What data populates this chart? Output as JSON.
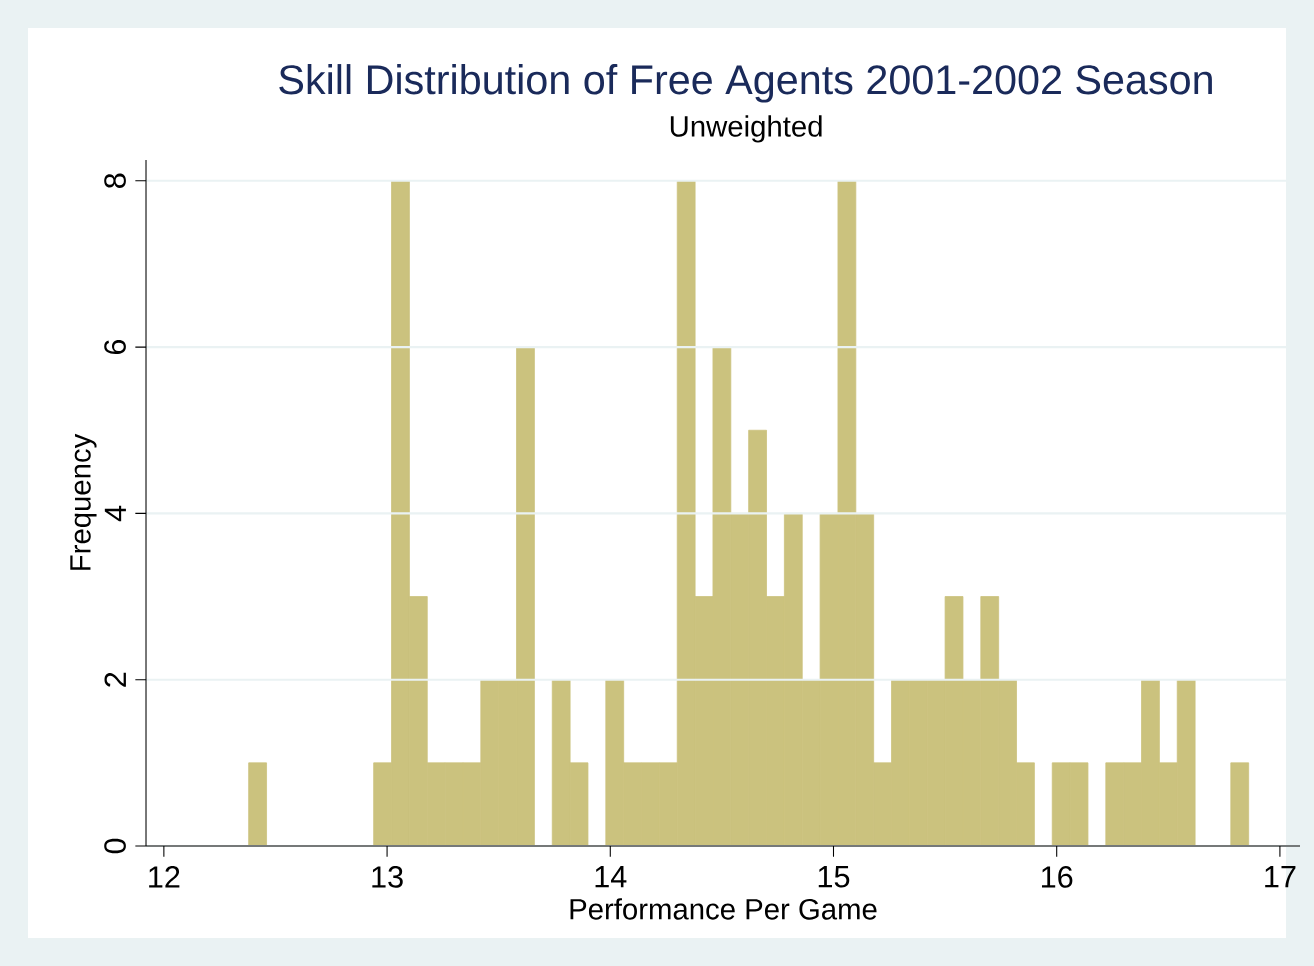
{
  "chart_data": {
    "type": "histogram",
    "title": "Skill Distribution of Free Agents 2001-2002 Season",
    "subtitle": "Unweighted",
    "xlabel": "Performance Per Game",
    "ylabel": "Frequency",
    "bins": [
      12.38,
      12.46,
      12.54,
      12.62,
      12.7,
      12.78,
      12.86,
      12.94,
      13.02,
      13.1,
      13.18,
      13.26,
      13.34,
      13.42,
      13.5,
      13.58,
      13.66,
      13.74,
      13.82,
      13.9,
      13.98,
      14.06,
      14.14,
      14.22,
      14.3,
      14.38,
      14.46,
      14.54,
      14.62,
      14.7,
      14.78,
      14.86,
      14.94,
      15.02,
      15.1,
      15.18,
      15.26,
      15.34,
      15.42,
      15.5,
      15.58,
      15.66,
      15.74,
      15.82,
      15.9,
      15.98,
      16.06,
      16.14,
      16.22,
      16.3,
      16.38,
      16.46,
      16.54,
      16.62,
      16.7,
      16.78,
      16.86
    ],
    "values": [
      1,
      0,
      0,
      0,
      0,
      0,
      0,
      1,
      8,
      3,
      1,
      1,
      1,
      2,
      2,
      6,
      0,
      2,
      1,
      0,
      2,
      1,
      1,
      1,
      8,
      3,
      6,
      4,
      5,
      3,
      4,
      2,
      4,
      8,
      4,
      1,
      2,
      2,
      2,
      3,
      2,
      3,
      2,
      1,
      0,
      1,
      1,
      0,
      1,
      1,
      2,
      1,
      2,
      0,
      0,
      1
    ],
    "color": "#cbc27e",
    "xlim": [
      11.92,
      17.09
    ],
    "ylim": [
      0,
      8.25
    ],
    "xticks": [
      12,
      13,
      14,
      15,
      16,
      17
    ],
    "yticks": [
      0,
      2,
      4,
      6,
      8
    ],
    "grid": "y"
  }
}
